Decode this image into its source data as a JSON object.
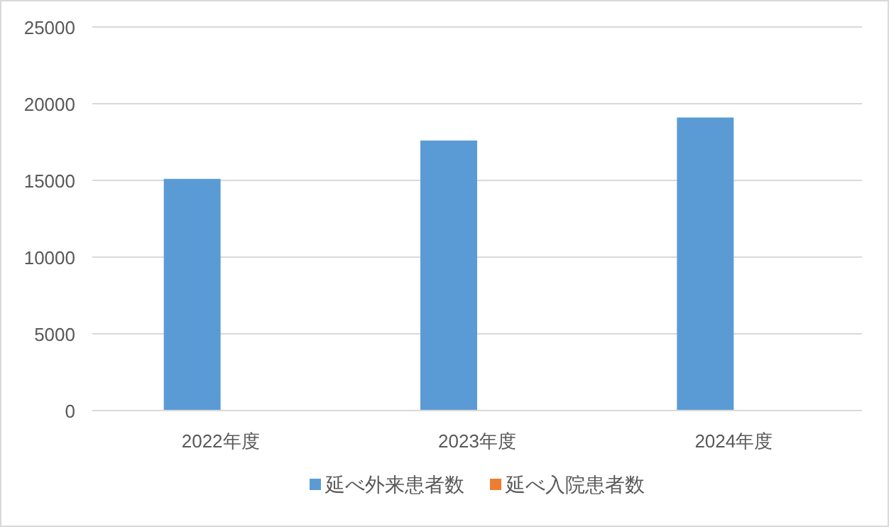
{
  "chart_data": {
    "type": "bar",
    "categories": [
      "2022年度",
      "2023年度",
      "2024年度"
    ],
    "series": [
      {
        "name": "延べ外来患者数",
        "color": "#5b9bd5",
        "values": [
          15100,
          17600,
          19100
        ]
      },
      {
        "name": "延べ入院患者数",
        "color": "#ed7d31",
        "values": [
          null,
          null,
          null
        ]
      }
    ],
    "ylim": [
      0,
      25000
    ],
    "yticks": [
      0,
      5000,
      10000,
      15000,
      20000,
      25000
    ],
    "grid": "y",
    "legend": "bottom"
  }
}
